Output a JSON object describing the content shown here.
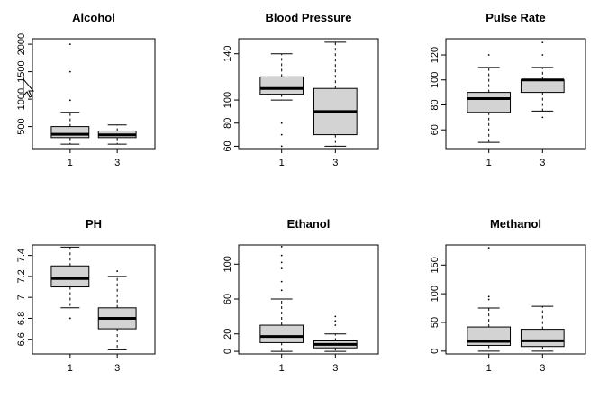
{
  "chart_data": [
    {
      "type": "boxplot",
      "title": "Alcohol",
      "categories": [
        "1",
        "3"
      ],
      "yticks": [
        500,
        1000,
        1500,
        2000
      ],
      "ylim": [
        100,
        2100
      ],
      "boxes": [
        {
          "name": "1",
          "whisker_low": 180,
          "q1": 300,
          "median": 360,
          "q3": 500,
          "whisker_high": 760,
          "outliers": [
            980,
            1500,
            2000
          ]
        },
        {
          "name": "3",
          "whisker_low": 180,
          "q1": 300,
          "median": 350,
          "q3": 420,
          "whisker_high": 530,
          "outliers": []
        }
      ]
    },
    {
      "type": "boxplot",
      "title": "Blood Pressure",
      "categories": [
        "1",
        "3"
      ],
      "yticks": [
        60,
        80,
        100,
        140
      ],
      "ylim": [
        58,
        153
      ],
      "boxes": [
        {
          "name": "1",
          "whisker_low": 100,
          "q1": 105,
          "median": 110,
          "q3": 120,
          "whisker_high": 140,
          "outliers": [
            80,
            70,
            60
          ]
        },
        {
          "name": "3",
          "whisker_low": 60,
          "q1": 70,
          "median": 90,
          "q3": 110,
          "whisker_high": 150,
          "outliers": []
        }
      ]
    },
    {
      "type": "boxplot",
      "title": "Pulse Rate",
      "categories": [
        "1",
        "3"
      ],
      "yticks": [
        60,
        80,
        100,
        120
      ],
      "ylim": [
        45,
        133
      ],
      "boxes": [
        {
          "name": "1",
          "whisker_low": 50,
          "q1": 74,
          "median": 85,
          "q3": 90,
          "whisker_high": 110,
          "outliers": [
            120
          ]
        },
        {
          "name": "3",
          "whisker_low": 75,
          "q1": 90,
          "median": 100,
          "q3": 100,
          "whisker_high": 110,
          "outliers": [
            70,
            120,
            130
          ]
        }
      ]
    },
    {
      "type": "boxplot",
      "title": "PH",
      "categories": [
        "1",
        "3"
      ],
      "yticks": [
        6.6,
        6.8,
        7.0,
        7.2,
        7.4
      ],
      "ylim": [
        6.46,
        7.5
      ],
      "boxes": [
        {
          "name": "1",
          "whisker_low": 6.9,
          "q1": 7.1,
          "median": 7.18,
          "q3": 7.3,
          "whisker_high": 7.48,
          "outliers": [
            6.8
          ]
        },
        {
          "name": "3",
          "whisker_low": 6.5,
          "q1": 6.7,
          "median": 6.8,
          "q3": 6.9,
          "whisker_high": 7.2,
          "outliers": [
            7.25
          ]
        }
      ]
    },
    {
      "type": "boxplot",
      "title": "Ethanol",
      "categories": [
        "1",
        "3"
      ],
      "yticks": [
        0,
        20,
        60,
        100
      ],
      "ylim": [
        -3,
        122
      ],
      "boxes": [
        {
          "name": "1",
          "whisker_low": 0,
          "q1": 10,
          "median": 17,
          "q3": 30,
          "whisker_high": 60,
          "outliers": [
            70,
            80,
            95,
            102,
            110,
            120
          ]
        },
        {
          "name": "3",
          "whisker_low": 0,
          "q1": 4,
          "median": 8,
          "q3": 12,
          "whisker_high": 20,
          "outliers": [
            30,
            35,
            40
          ]
        }
      ]
    },
    {
      "type": "boxplot",
      "title": "Methanol",
      "categories": [
        "1",
        "3"
      ],
      "yticks": [
        0,
        50,
        100,
        150
      ],
      "ylim": [
        -5,
        185
      ],
      "boxes": [
        {
          "name": "1",
          "whisker_low": 0,
          "q1": 10,
          "median": 17,
          "q3": 42,
          "whisker_high": 75,
          "outliers": [
            90,
            95,
            180
          ]
        },
        {
          "name": "3",
          "whisker_low": 0,
          "q1": 8,
          "median": 18,
          "q3": 38,
          "whisker_high": 78,
          "outliers": []
        }
      ]
    }
  ]
}
